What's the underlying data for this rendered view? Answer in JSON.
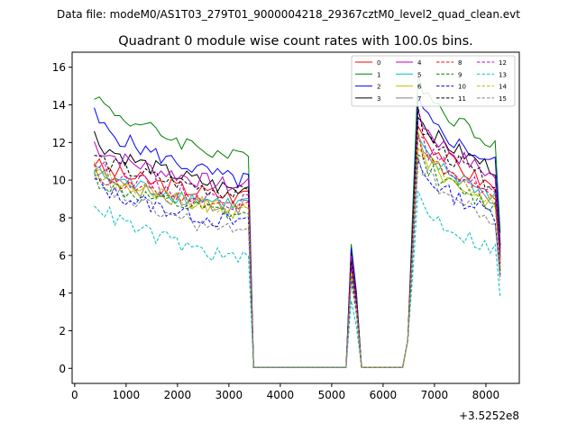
{
  "chart_data": {
    "type": "line",
    "suptitle": "Data file: modeM0/AS1T03_279T01_9000004218_29367cztM0_level2_quad_clean.evt",
    "title": "Quadrant 0 module wise count rates with 100.0s bins.",
    "xlabel": "",
    "ylabel": "",
    "x_offset_label": "+3.5252e8",
    "xlim": [
      -50,
      8650
    ],
    "ylim": [
      -0.8,
      16.8
    ],
    "xticks": [
      0,
      1000,
      2000,
      3000,
      4000,
      5000,
      6000,
      7000,
      8000
    ],
    "yticks": [
      0,
      2,
      4,
      6,
      8,
      10,
      12,
      14,
      16
    ],
    "legend_position": "top-right",
    "x": [
      380,
      480,
      580,
      680,
      780,
      880,
      980,
      1080,
      1180,
      1280,
      1380,
      1480,
      1580,
      1680,
      1780,
      1880,
      1980,
      2080,
      2180,
      2280,
      2380,
      2480,
      2580,
      2680,
      2780,
      2880,
      2980,
      3080,
      3180,
      3280,
      3380,
      3480,
      3580,
      3680,
      3780,
      3880,
      3980,
      4080,
      4180,
      4280,
      4380,
      4480,
      4580,
      4680,
      4780,
      4880,
      4980,
      5080,
      5180,
      5280,
      5380,
      5480,
      5580,
      5680,
      5780,
      5880,
      5980,
      6080,
      6180,
      6280,
      6380,
      6480,
      6580,
      6680,
      6780,
      6880,
      6980,
      7080,
      7180,
      7280,
      7380,
      7480,
      7580,
      7680,
      7780,
      7880,
      7980,
      8080,
      8180,
      8280
    ],
    "segments": [
      {
        "plateau": [
          3.0,
          3.3
        ],
        "base_shape": "decay"
      },
      {
        "gap": [
          3.48,
          5.28
        ]
      },
      {
        "spike": [
          5.28,
          5.56
        ]
      },
      {
        "gap": [
          5.56,
          6.45
        ]
      },
      {
        "plateau": [
          6.6,
          8.28
        ],
        "base_shape": "peak-then-decay"
      }
    ],
    "series": [
      {
        "name": "0",
        "color": "#ff0000",
        "dash": false,
        "start": 11.0,
        "late": 9.0,
        "peak": 13.3,
        "late2": 9.6,
        "spike": 5.8
      },
      {
        "name": "1",
        "color": "#008000",
        "dash": false,
        "start": 14.7,
        "late": 11.0,
        "peak": 15.8,
        "late2": 12.0,
        "spike": 6.6
      },
      {
        "name": "2",
        "color": "#0000ff",
        "dash": false,
        "start": 13.5,
        "late": 9.8,
        "peak": 14.3,
        "late2": 10.9,
        "spike": 6.4
      },
      {
        "name": "3",
        "color": "#000000",
        "dash": false,
        "start": 12.4,
        "late": 9.3,
        "peak": 13.7,
        "late2": 10.6,
        "spike": 6.1
      },
      {
        "name": "4",
        "color": "#bf00bf",
        "dash": false,
        "start": 12.0,
        "late": 9.5,
        "peak": 13.8,
        "late2": 10.2,
        "spike": 6.0
      },
      {
        "name": "5",
        "color": "#00bfbf",
        "dash": false,
        "start": 10.6,
        "late": 8.6,
        "peak": 12.1,
        "late2": 9.2,
        "spike": 5.4
      },
      {
        "name": "6",
        "color": "#bfbf00",
        "dash": false,
        "start": 10.7,
        "late": 8.2,
        "peak": 12.0,
        "late2": 8.8,
        "spike": 5.2
      },
      {
        "name": "7",
        "color": "#808080",
        "dash": false,
        "start": 10.6,
        "late": 8.4,
        "peak": 12.4,
        "late2": 9.0,
        "spike": 5.5
      },
      {
        "name": "8",
        "color": "#ff0000",
        "dash": true,
        "start": 10.5,
        "late": 8.5,
        "peak": 12.2,
        "late2": 9.0,
        "spike": 5.3
      },
      {
        "name": "9",
        "color": "#008000",
        "dash": true,
        "start": 10.2,
        "late": 8.0,
        "peak": 11.6,
        "late2": 8.6,
        "spike": 5.0
      },
      {
        "name": "10",
        "color": "#0000ff",
        "dash": true,
        "start": 10.0,
        "late": 7.6,
        "peak": 11.0,
        "late2": 8.2,
        "spike": 4.8
      },
      {
        "name": "11",
        "color": "#000000",
        "dash": true,
        "start": 11.4,
        "late": 9.2,
        "peak": 13.5,
        "late2": 9.8,
        "spike": 5.7
      },
      {
        "name": "12",
        "color": "#bf00bf",
        "dash": true,
        "start": 11.0,
        "late": 8.7,
        "peak": 12.6,
        "late2": 9.3,
        "spike": 5.4
      },
      {
        "name": "13",
        "color": "#00bfbf",
        "dash": true,
        "start": 9.0,
        "late": 5.6,
        "peak": 9.3,
        "late2": 6.3,
        "spike": 3.6
      },
      {
        "name": "14",
        "color": "#bfbf00",
        "dash": true,
        "start": 10.6,
        "late": 8.3,
        "peak": 12.2,
        "late2": 8.9,
        "spike": 5.1
      },
      {
        "name": "15",
        "color": "#808080",
        "dash": true,
        "start": 10.3,
        "late": 7.0,
        "peak": 11.4,
        "late2": 7.8,
        "spike": 4.6
      }
    ]
  }
}
